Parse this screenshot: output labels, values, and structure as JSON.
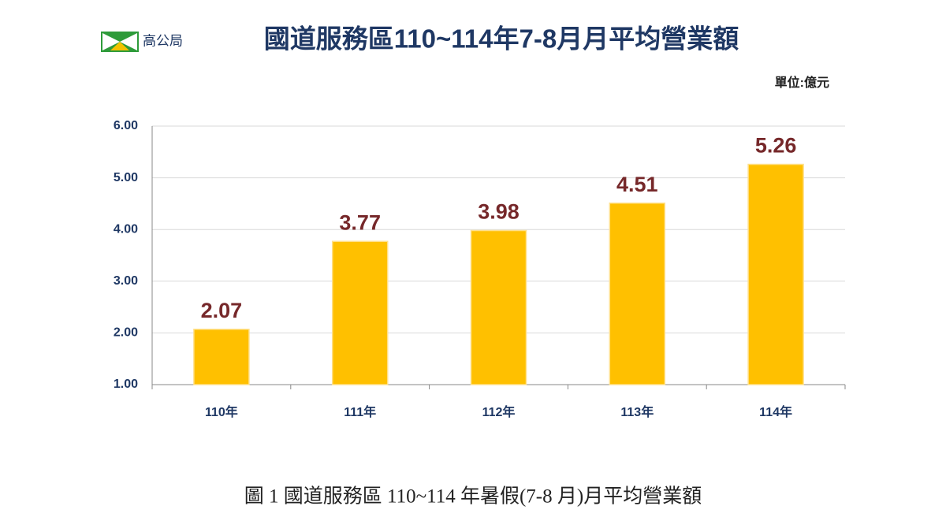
{
  "header": {
    "logo_text": "高公局"
  },
  "chart_data": {
    "type": "bar",
    "title": "國道服務區110~114年7-8月月平均營業額",
    "unit": "單位:億元",
    "categories": [
      "110年",
      "111年",
      "112年",
      "113年",
      "114年"
    ],
    "values": [
      2.07,
      3.77,
      3.98,
      4.51,
      5.26
    ],
    "color": "#ffc000",
    "ylim": [
      1,
      6
    ],
    "yticks": [
      {
        "value": 1,
        "label": "1.00"
      },
      {
        "value": 2,
        "label": "2.00"
      },
      {
        "value": 3,
        "label": "3.00"
      },
      {
        "value": 4,
        "label": "4.00"
      },
      {
        "value": 5,
        "label": "5.00"
      },
      {
        "value": 6,
        "label": "6.00"
      }
    ],
    "grid": true
  },
  "caption": "圖 1 國道服務區 110~114 年暑假(7-8 月)月平均營業額"
}
